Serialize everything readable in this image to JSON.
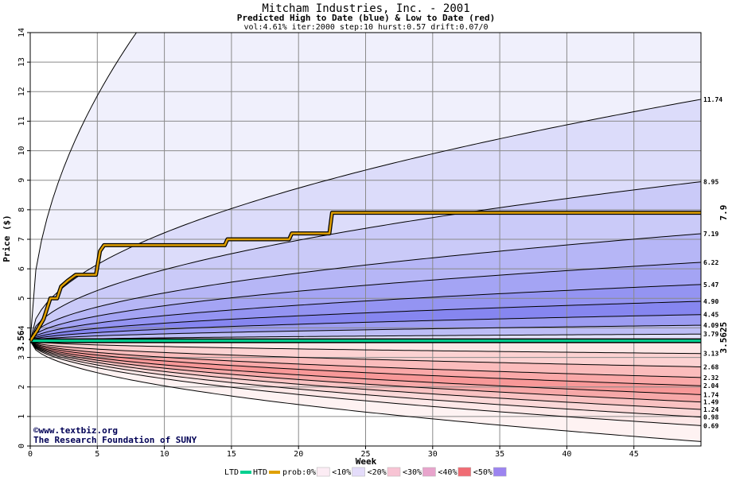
{
  "chart_data": {
    "type": "area",
    "title": "Mitcham Industries, Inc. - 2001",
    "subtitle": "Predicted High to Date (blue) &  Low to Date (red)",
    "params": "vol:4.61% iter:2000 step:10 hurst:0.57 drift:0.07/0",
    "xlabel": "Week",
    "ylabel": "Price ($)",
    "xlim": [
      0,
      50
    ],
    "ylim": [
      0,
      14
    ],
    "x_ticks": [
      "0",
      "5",
      "10",
      "15",
      "20",
      "25",
      "30",
      "35",
      "40",
      "45"
    ],
    "y_ticks": [
      "0",
      "1",
      "2",
      "3",
      "4",
      "5",
      "6",
      "7",
      "8",
      "9",
      "10",
      "11",
      "12",
      "13",
      "14"
    ],
    "grid": true,
    "start_price": 3.56,
    "start_label": "3.56",
    "hline_value": 3.5625,
    "hline_label": "3.5625",
    "htd_final": 7.9,
    "htd_label": "7.9",
    "high_quantiles_end": [
      11.74,
      8.95,
      7.19,
      6.22,
      5.47,
      4.9,
      4.45,
      4.09,
      3.79
    ],
    "high_quantile_labels": [
      "11.74",
      "8.95",
      "7.19",
      "6.22",
      "5.47",
      "4.90",
      "4.45",
      "4.09",
      "3.79"
    ],
    "low_quantiles_end": [
      3.13,
      2.68,
      2.32,
      2.04,
      1.74,
      1.49,
      1.24,
      0.98,
      0.69
    ],
    "low_quantile_labels": [
      "3.13",
      "2.68",
      "2.32",
      "2.04",
      "1.74",
      "1.49",
      "1.24",
      "0.98",
      "0.69"
    ],
    "outer_high_end": 14,
    "outer_low_end": 0.15,
    "htd_path": [
      [
        0,
        3.56
      ],
      [
        0.5,
        3.9
      ],
      [
        1,
        4.3
      ],
      [
        1.5,
        5.0
      ],
      [
        2,
        5.0
      ],
      [
        2.3,
        5.4
      ],
      [
        2.8,
        5.6
      ],
      [
        3.4,
        5.8
      ],
      [
        4.9,
        5.8
      ],
      [
        5.2,
        6.6
      ],
      [
        5.5,
        6.8
      ],
      [
        14.5,
        6.8
      ],
      [
        14.7,
        7.0
      ],
      [
        19.3,
        7.0
      ],
      [
        19.5,
        7.2
      ],
      [
        22.3,
        7.2
      ],
      [
        22.5,
        7.9
      ],
      [
        50,
        7.9
      ]
    ],
    "series": [
      {
        "name": "LTD",
        "color": "#00d090"
      },
      {
        "name": "HTD",
        "color": "#e0a000"
      }
    ]
  },
  "credit": {
    "line1": "©www.textbiz.org",
    "line2": "The Research Foundation of SUNY"
  },
  "legend": {
    "prob_label": "prob:",
    "items": [
      "0%",
      "10%",
      "20%",
      "30%",
      "40%",
      "50%"
    ],
    "colors": [
      "#ffffff",
      "#fcecf4",
      "#e4dcfa",
      "#f8c4d4",
      "#e8a4cc",
      "#f06c74",
      "#9c84f0"
    ]
  }
}
